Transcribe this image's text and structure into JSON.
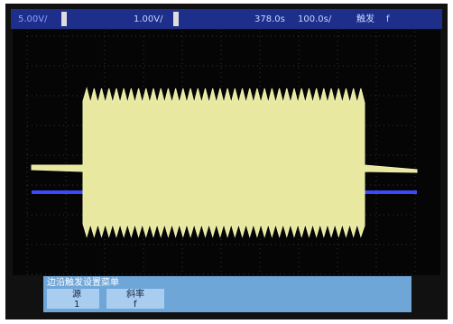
{
  "top_bar": {
    "ch1_scale": "5.00V/",
    "ch2_scale": "1.00V/",
    "trigger_time": "378.0s",
    "time_scale": "100.0s/",
    "trigger_mode": "触发",
    "trigger_edge": "f"
  },
  "menu": {
    "title": "边沿触发设置菜单",
    "buttons": [
      {
        "label": "源",
        "value": "1"
      },
      {
        "label": "斜率",
        "value": "f"
      }
    ]
  }
}
